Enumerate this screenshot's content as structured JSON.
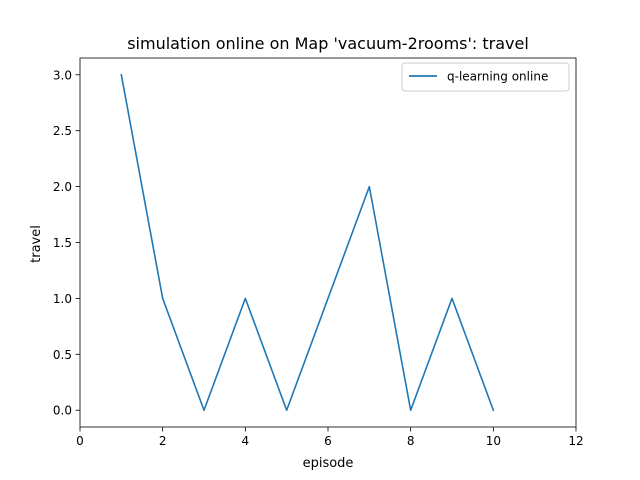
{
  "chart_data": {
    "type": "line",
    "title": "simulation online on Map 'vacuum-2rooms': travel",
    "xlabel": "episode",
    "ylabel": "travel",
    "xlim": [
      0,
      12
    ],
    "ylim": [
      -0.15,
      3.15
    ],
    "xticks": [
      0,
      2,
      4,
      6,
      8,
      10,
      12
    ],
    "xtick_labels": [
      "0",
      "2",
      "4",
      "6",
      "8",
      "10",
      "12"
    ],
    "yticks": [
      0.0,
      0.5,
      1.0,
      1.5,
      2.0,
      2.5,
      3.0
    ],
    "ytick_labels": [
      "0.0",
      "0.5",
      "1.0",
      "1.5",
      "2.0",
      "2.5",
      "3.0"
    ],
    "grid": false,
    "legend_position": "top-right",
    "series": [
      {
        "name": "q-learning online",
        "color": "#1f77b4",
        "x": [
          1,
          2,
          3,
          4,
          5,
          6,
          7,
          8,
          9,
          10
        ],
        "y": [
          3,
          1,
          0,
          1,
          0,
          1,
          2,
          0,
          1,
          0
        ]
      }
    ]
  }
}
